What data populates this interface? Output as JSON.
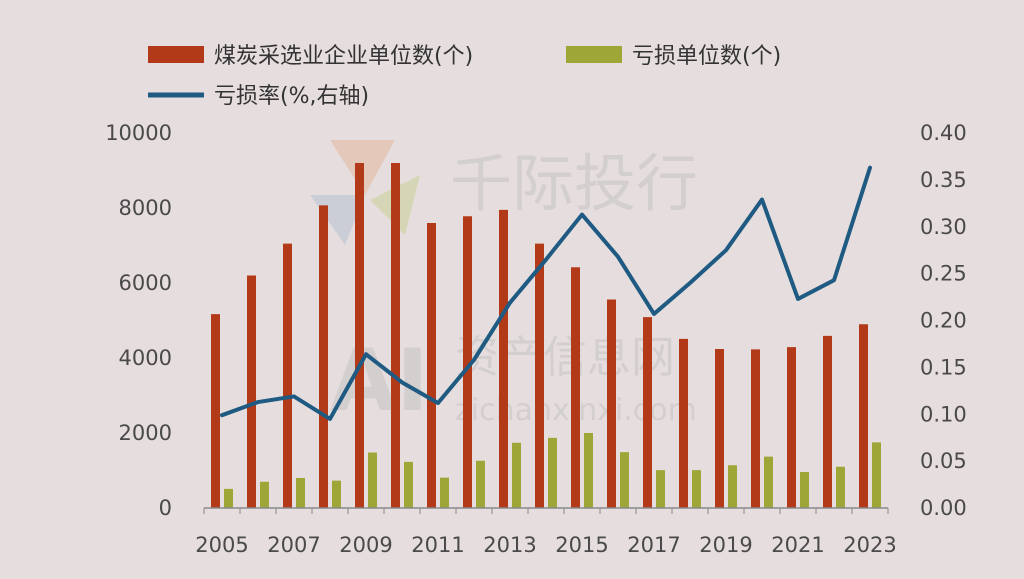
{
  "chart_data": {
    "type": "bar",
    "title": "",
    "x": [
      2005,
      2006,
      2007,
      2008,
      2009,
      2010,
      2011,
      2012,
      2013,
      2014,
      2015,
      2016,
      2017,
      2018,
      2019,
      2020,
      2021,
      2022,
      2023
    ],
    "x_tick_labels": [
      "2005",
      "2007",
      "2009",
      "2011",
      "2013",
      "2015",
      "2017",
      "2019",
      "2021",
      "2023"
    ],
    "y_left_lim": [
      0,
      10000
    ],
    "y_left_ticks": [
      "0",
      "2000",
      "4000",
      "6000",
      "8000",
      "10000"
    ],
    "y_right_lim": [
      0,
      0.4
    ],
    "y_right_ticks": [
      "0.00",
      "0.05",
      "0.10",
      "0.15",
      "0.20",
      "0.25",
      "0.30",
      "0.35",
      "0.40"
    ],
    "grid": false,
    "legend_position": "top-left",
    "series": [
      {
        "name": "煤炭采选业企业单位数(个)",
        "type": "bar",
        "axis": "left",
        "color": "#b33a19",
        "values": [
          5170,
          6200,
          7050,
          8070,
          9200,
          9200,
          7600,
          7780,
          7950,
          7050,
          6420,
          5560,
          5090,
          4510,
          4240,
          4230,
          4290,
          4590,
          4900
        ]
      },
      {
        "name": "亏损单位数(个)",
        "type": "bar",
        "axis": "left",
        "color": "#9ea637",
        "values": [
          510,
          700,
          800,
          730,
          1480,
          1230,
          810,
          1260,
          1740,
          1870,
          2000,
          1490,
          1010,
          1010,
          1140,
          1370,
          960,
          1100,
          1750
        ]
      },
      {
        "name": "亏损率(%,右轴)",
        "type": "line",
        "axis": "right",
        "color": "#1f5a82",
        "values": [
          0.099,
          0.113,
          0.119,
          0.095,
          0.164,
          0.134,
          0.112,
          0.158,
          0.219,
          0.265,
          0.313,
          0.268,
          0.207,
          0.24,
          0.275,
          0.329,
          0.223,
          0.243,
          0.363
        ]
      }
    ]
  },
  "watermarks": {
    "brand": "千际投行",
    "site_cn": "资产信息网",
    "site_en": "zichanxinxi.com",
    "logo": "AI"
  }
}
